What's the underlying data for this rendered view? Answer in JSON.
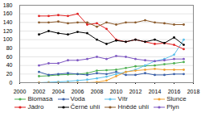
{
  "chart_data": {
    "type": "line",
    "x": [
      2002,
      2003,
      2004,
      2005,
      2006,
      2007,
      2008,
      2009,
      2010,
      2011,
      2012,
      2013,
      2014,
      2015,
      2016,
      2017
    ],
    "series": [
      {
        "name": "Biomasa",
        "color": "#4caf50",
        "values": [
          15,
          16,
          18,
          19,
          20,
          22,
          28,
          29,
          30,
          34,
          38,
          39,
          40,
          43,
          45,
          48
        ]
      },
      {
        "name": "Voda",
        "color": "#3a5fa8",
        "values": [
          25,
          18,
          20,
          22,
          20,
          18,
          22,
          20,
          25,
          18,
          18,
          22,
          18,
          18,
          20,
          20
        ]
      },
      {
        "name": "Vítr",
        "color": "#5bc0eb",
        "values": [
          0,
          1,
          2,
          3,
          5,
          7,
          10,
          14,
          20,
          25,
          30,
          40,
          50,
          55,
          65,
          100
        ]
      },
      {
        "name": "Slunce",
        "color": "#f0a030",
        "values": [
          0,
          0,
          0,
          0,
          0,
          0,
          1,
          5,
          15,
          25,
          28,
          30,
          32,
          30,
          30,
          30
        ]
      },
      {
        "name": "Jádro",
        "color": "#e02020",
        "values": [
          155,
          155,
          157,
          155,
          160,
          135,
          138,
          125,
          100,
          95,
          100,
          95,
          90,
          92,
          88,
          78
        ]
      },
      {
        "name": "Černé uhlí",
        "color": "#000000",
        "values": [
          112,
          120,
          115,
          112,
          118,
          115,
          100,
          90,
          98,
          95,
          100,
          95,
          100,
          92,
          105,
          88
        ]
      },
      {
        "name": "Hnědé uhlí",
        "color": "#8b5a2b",
        "values": [
          140,
          140,
          142,
          138,
          140,
          140,
          130,
          140,
          135,
          140,
          140,
          145,
          140,
          138,
          135,
          135
        ]
      },
      {
        "name": "Plyn",
        "color": "#7e57c2",
        "values": [
          40,
          45,
          45,
          52,
          52,
          55,
          60,
          55,
          62,
          60,
          55,
          52,
          50,
          52,
          55,
          55
        ]
      }
    ],
    "xlim": [
      2000,
      2018
    ],
    "xticks": [
      2000,
      2002,
      2004,
      2006,
      2008,
      2010,
      2012,
      2014,
      2016,
      2018
    ],
    "ylim": [
      0,
      180
    ],
    "yticks": [
      0,
      20,
      40,
      60,
      80,
      100,
      120,
      140,
      160,
      180
    ],
    "grid": true,
    "legend": "bottom",
    "marker": "circle"
  }
}
